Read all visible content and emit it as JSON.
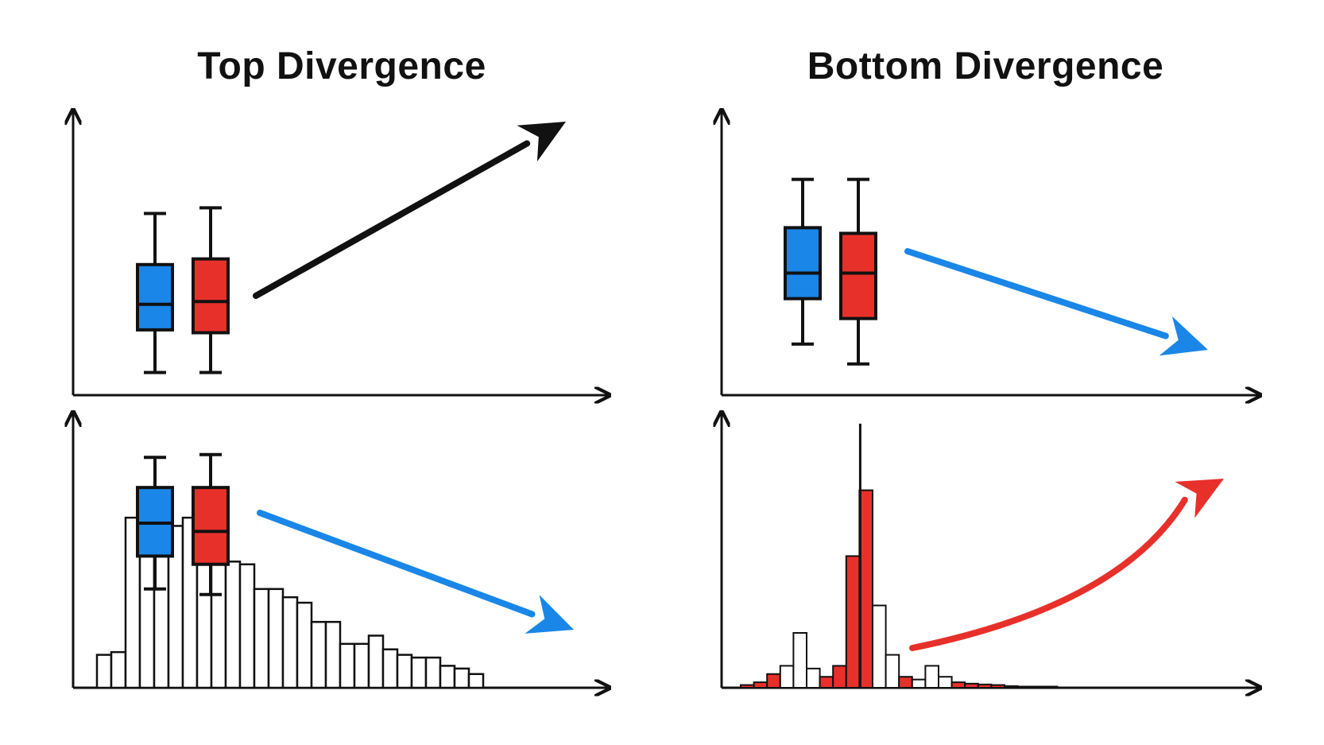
{
  "titles": {
    "left": "Top Divergence",
    "right": "Bottom Divergence"
  },
  "colors": {
    "blue": "#1a86e8",
    "red": "#e8302a",
    "black": "#111111"
  },
  "panels": {
    "top_left": {
      "boxplots": [
        {
          "color": "blue",
          "min": 0.08,
          "q1": 0.23,
          "median": 0.32,
          "q3": 0.46,
          "max": 0.64
        },
        {
          "color": "red",
          "min": 0.08,
          "q1": 0.22,
          "median": 0.33,
          "q3": 0.48,
          "max": 0.66
        }
      ],
      "trend": {
        "direction": "up",
        "color": "black"
      }
    },
    "top_right": {
      "boxplots": [
        {
          "color": "blue",
          "min": 0.18,
          "q1": 0.34,
          "median": 0.43,
          "q3": 0.59,
          "max": 0.76
        },
        {
          "color": "red",
          "min": 0.11,
          "q1": 0.27,
          "median": 0.43,
          "q3": 0.57,
          "max": 0.76
        }
      ],
      "trend": {
        "direction": "down",
        "color": "blue"
      }
    },
    "bottom_left": {
      "histogram": [
        0.12,
        0.13,
        0.62,
        0.58,
        0.52,
        0.59,
        0.62,
        0.61,
        0.56,
        0.46,
        0.45,
        0.36,
        0.36,
        0.33,
        0.31,
        0.24,
        0.24,
        0.16,
        0.16,
        0.19,
        0.14,
        0.12,
        0.11,
        0.11,
        0.08,
        0.07,
        0.05
      ],
      "boxplots": [
        {
          "color": "blue",
          "min": 0.36,
          "q1": 0.48,
          "median": 0.6,
          "q3": 0.73,
          "max": 0.84
        },
        {
          "color": "red",
          "min": 0.34,
          "q1": 0.45,
          "median": 0.57,
          "q3": 0.73,
          "max": 0.85
        }
      ],
      "trend": {
        "direction": "down",
        "color": "blue"
      }
    },
    "bottom_right": {
      "histogram": [
        {
          "h": 0.01,
          "c": "red"
        },
        {
          "h": 0.02,
          "c": "red"
        },
        {
          "h": 0.05,
          "c": "red"
        },
        {
          "h": 0.08,
          "c": "white"
        },
        {
          "h": 0.2,
          "c": "white"
        },
        {
          "h": 0.07,
          "c": "white"
        },
        {
          "h": 0.04,
          "c": "red"
        },
        {
          "h": 0.08,
          "c": "red"
        },
        {
          "h": 0.48,
          "c": "red"
        },
        {
          "h": 0.72,
          "c": "red"
        },
        {
          "h": 0.3,
          "c": "white"
        },
        {
          "h": 0.12,
          "c": "white"
        },
        {
          "h": 0.04,
          "c": "red"
        },
        {
          "h": 0.03,
          "c": "white"
        },
        {
          "h": 0.08,
          "c": "white"
        },
        {
          "h": 0.04,
          "c": "white"
        },
        {
          "h": 0.02,
          "c": "red"
        },
        {
          "h": 0.015,
          "c": "red"
        },
        {
          "h": 0.012,
          "c": "red"
        },
        {
          "h": 0.01,
          "c": "red"
        },
        {
          "h": 0.006,
          "c": "red"
        },
        {
          "h": 0.004,
          "c": "red"
        },
        {
          "h": 0.003,
          "c": "red"
        },
        {
          "h": 0.002,
          "c": "red"
        }
      ],
      "spike": 0.98,
      "trend": {
        "direction": "up",
        "color": "red"
      }
    }
  }
}
